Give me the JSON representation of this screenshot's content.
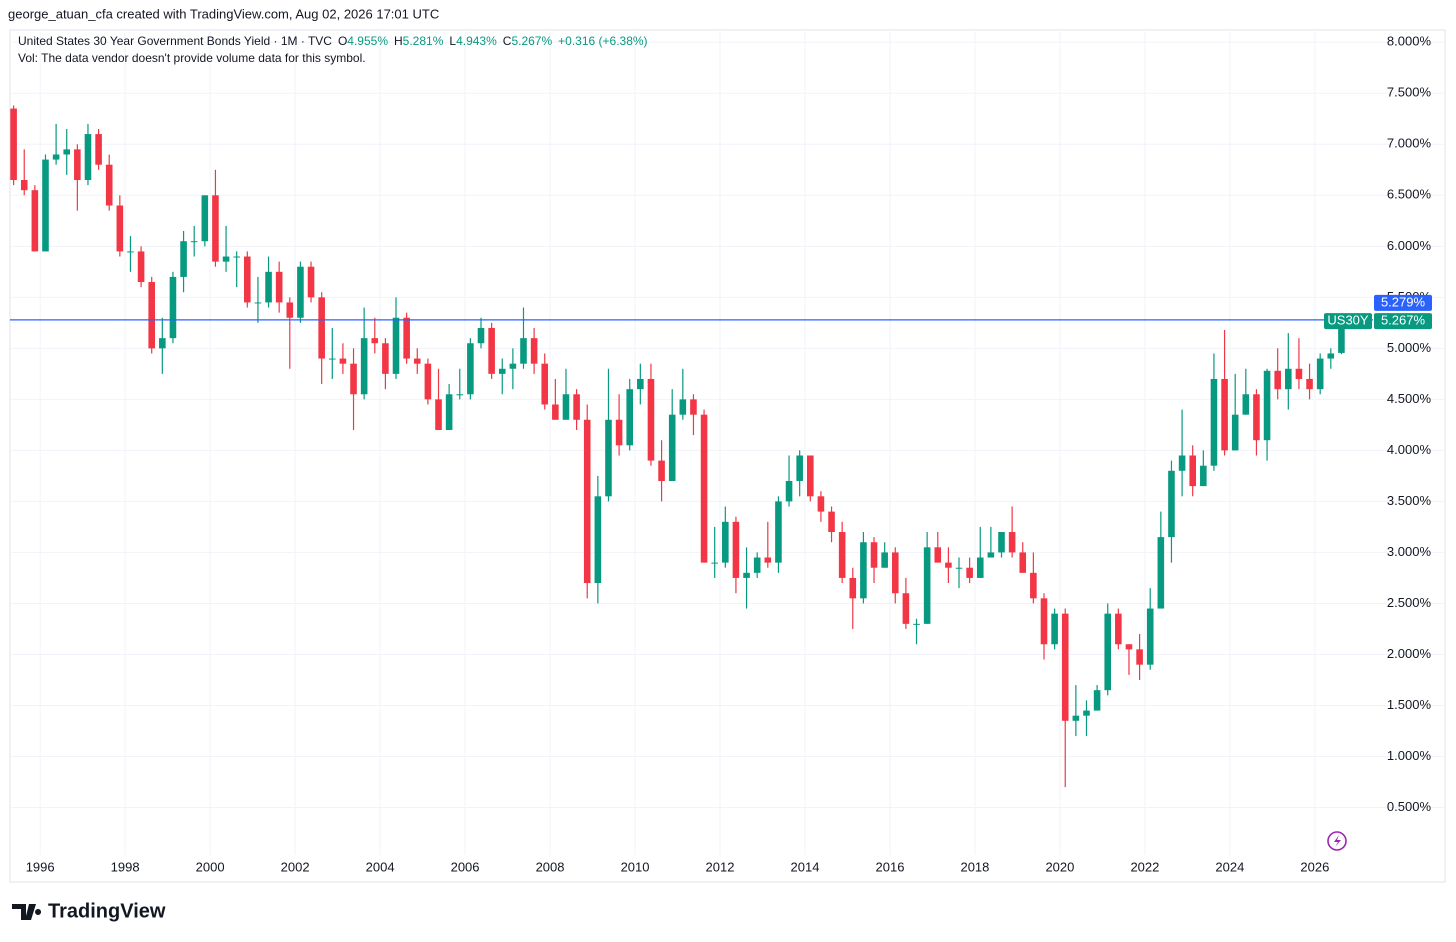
{
  "chart_data": {
    "type": "candlestick",
    "credit": "george_atuan_cfa created with TradingView.com, Aug 02, 2026 17:01 UTC",
    "title": "United States 30 Year Government Bonds Yield · 1M · TVC",
    "legend": [
      {
        "key": "O",
        "text": "4.955%"
      },
      {
        "key": "H",
        "text": "5.281%"
      },
      {
        "key": "L",
        "text": "4.943%"
      },
      {
        "key": "C",
        "text": "5.267%"
      }
    ],
    "change": "+0.316 (+6.38%)",
    "volume_note": "Vol: The data vendor doesn't provide volume data for this symbol.",
    "brand": "TradingView",
    "up_color": "#089981",
    "down_color": "#f23645",
    "grid": true,
    "xlim": [
      1995.29,
      2027.18
    ],
    "xticks": [
      1996,
      1998,
      2000,
      2002,
      2004,
      2006,
      2008,
      2010,
      2012,
      2014,
      2016,
      2018,
      2020,
      2022,
      2024,
      2026
    ],
    "ylim": [
      -0.23,
      8.12
    ],
    "yticks": [
      {
        "value": 0.5,
        "label": "0.500%"
      },
      {
        "value": 1,
        "label": "1.000%"
      },
      {
        "value": 1.5,
        "label": "1.500%"
      },
      {
        "value": 2,
        "label": "2.000%"
      },
      {
        "value": 2.5,
        "label": "2.500%"
      },
      {
        "value": 3,
        "label": "3.000%"
      },
      {
        "value": 3.5,
        "label": "3.500%"
      },
      {
        "value": 4,
        "label": "4.000%"
      },
      {
        "value": 4.5,
        "label": "4.500%"
      },
      {
        "value": 5,
        "label": "5.000%"
      },
      {
        "value": 5.5,
        "label": "5.500%"
      },
      {
        "value": 6,
        "label": "6.000%"
      },
      {
        "value": 6.5,
        "label": "6.500%"
      },
      {
        "value": 7,
        "label": "7.000%"
      },
      {
        "value": 7.5,
        "label": "7.500%"
      },
      {
        "value": 8,
        "label": "8.000%"
      }
    ],
    "price_line": {
      "value": 5.279,
      "label": "5.279%",
      "color": "#2962ff"
    },
    "last_close": {
      "name": "US30Y",
      "value": 5.267,
      "label": "5.267%",
      "color": "#089981"
    },
    "x": [
      1995.25,
      1995.5,
      1995.75,
      1996,
      1996.25,
      1996.5,
      1996.75,
      1997,
      1997.25,
      1997.5,
      1997.75,
      1998,
      1998.25,
      1998.5,
      1998.75,
      1999,
      1999.25,
      1999.5,
      1999.75,
      2000,
      2000.25,
      2000.5,
      2000.75,
      2001,
      2001.25,
      2001.5,
      2001.75,
      2002,
      2002.25,
      2002.5,
      2002.75,
      2003,
      2003.25,
      2003.5,
      2003.75,
      2004,
      2004.25,
      2004.5,
      2004.75,
      2005,
      2005.25,
      2005.5,
      2005.75,
      2006,
      2006.25,
      2006.5,
      2006.75,
      2007,
      2007.25,
      2007.5,
      2007.75,
      2008,
      2008.25,
      2008.5,
      2008.75,
      2009,
      2009.25,
      2009.5,
      2009.75,
      2010,
      2010.25,
      2010.5,
      2010.75,
      2011,
      2011.25,
      2011.5,
      2011.75,
      2012,
      2012.25,
      2012.5,
      2012.75,
      2013,
      2013.25,
      2013.5,
      2013.75,
      2014,
      2014.25,
      2014.5,
      2014.75,
      2015,
      2015.25,
      2015.5,
      2015.75,
      2016,
      2016.25,
      2016.5,
      2016.75,
      2017,
      2017.25,
      2017.5,
      2017.75,
      2018,
      2018.25,
      2018.5,
      2018.75,
      2019,
      2019.25,
      2019.5,
      2019.75,
      2020,
      2020.25,
      2020.5,
      2020.75,
      2021,
      2021.25,
      2021.5,
      2021.75,
      2022,
      2022.25,
      2022.5,
      2022.75,
      2023,
      2023.25,
      2023.5,
      2023.75,
      2024,
      2024.25,
      2024.5,
      2024.75,
      2025,
      2025.25,
      2025.5,
      2025.75,
      2026,
      2026.25,
      2026.5
    ],
    "open": [
      7.35,
      6.65,
      6.55,
      5.95,
      6.85,
      6.9,
      6.95,
      6.65,
      7.1,
      6.8,
      6.4,
      5.95,
      5.95,
      5.65,
      5.0,
      5.1,
      5.7,
      6.05,
      6.05,
      6.5,
      5.85,
      5.9,
      5.9,
      5.45,
      5.45,
      5.75,
      5.45,
      5.3,
      5.8,
      5.5,
      4.9,
      4.9,
      4.85,
      4.55,
      5.1,
      5.05,
      4.75,
      5.3,
      4.9,
      4.85,
      4.5,
      4.2,
      4.55,
      4.55,
      5.05,
      5.2,
      4.75,
      4.8,
      4.85,
      5.1,
      4.85,
      4.45,
      4.3,
      4.55,
      4.3,
      2.7,
      3.55,
      4.3,
      4.05,
      4.6,
      4.7,
      3.9,
      3.7,
      4.35,
      4.5,
      4.35,
      2.9,
      2.9,
      3.3,
      2.75,
      2.8,
      2.95,
      2.9,
      3.5,
      3.7,
      3.95,
      3.55,
      3.4,
      3.2,
      2.75,
      2.55,
      3.1,
      2.85,
      3.0,
      2.6,
      2.3,
      2.3,
      3.05,
      2.9,
      2.85,
      2.85,
      2.75,
      2.95,
      3.0,
      3.2,
      3.0,
      2.8,
      2.55,
      2.1,
      2.4,
      1.35,
      1.4,
      1.45,
      1.65,
      2.4,
      2.1,
      2.05,
      1.9,
      2.45,
      3.15,
      3.8,
      3.95,
      3.65,
      3.85,
      4.7,
      4.0,
      4.35,
      4.55,
      4.1,
      4.78,
      4.6,
      4.8,
      4.7,
      4.6,
      4.9,
      4.955
    ],
    "high": [
      7.38,
      6.95,
      6.6,
      6.9,
      7.2,
      7.15,
      7.0,
      7.2,
      7.15,
      6.9,
      6.5,
      6.1,
      6.0,
      5.7,
      5.3,
      5.75,
      6.15,
      6.2,
      6.5,
      6.75,
      6.2,
      5.95,
      5.95,
      5.7,
      5.9,
      5.85,
      5.5,
      5.85,
      5.85,
      5.55,
      5.2,
      5.05,
      5.0,
      5.4,
      5.3,
      5.1,
      5.5,
      5.35,
      5.0,
      4.9,
      4.8,
      4.65,
      4.8,
      5.1,
      5.3,
      5.25,
      4.9,
      5.0,
      5.4,
      5.2,
      4.95,
      4.7,
      4.8,
      4.6,
      4.45,
      3.75,
      4.8,
      4.55,
      4.7,
      4.85,
      4.85,
      4.1,
      4.6,
      4.8,
      4.55,
      4.4,
      3.25,
      3.45,
      3.35,
      3.05,
      3.0,
      3.3,
      3.55,
      3.95,
      4.0,
      3.95,
      3.6,
      3.45,
      3.3,
      2.85,
      3.2,
      3.15,
      3.1,
      3.05,
      2.75,
      2.35,
      3.2,
      3.2,
      3.05,
      2.95,
      2.95,
      3.25,
      3.25,
      3.2,
      3.45,
      3.1,
      3.0,
      2.6,
      2.45,
      2.45,
      1.7,
      1.55,
      1.7,
      2.5,
      2.45,
      2.1,
      2.2,
      2.65,
      3.4,
      3.9,
      4.4,
      4.05,
      4.0,
      4.95,
      5.18,
      4.75,
      4.8,
      4.6,
      4.8,
      5.0,
      5.15,
      5.1,
      4.85,
      4.95,
      5.0,
      5.281
    ],
    "low": [
      6.6,
      6.5,
      5.95,
      5.95,
      6.8,
      6.7,
      6.35,
      6.6,
      6.75,
      6.35,
      5.9,
      5.75,
      5.6,
      4.95,
      4.75,
      5.05,
      5.55,
      5.9,
      6.0,
      5.8,
      5.75,
      5.6,
      5.4,
      5.25,
      5.4,
      5.35,
      4.8,
      5.25,
      5.45,
      4.65,
      4.7,
      4.75,
      4.2,
      4.5,
      4.95,
      4.6,
      4.7,
      4.85,
      4.75,
      4.45,
      4.2,
      4.2,
      4.5,
      4.5,
      5.0,
      4.7,
      4.55,
      4.6,
      4.8,
      4.75,
      4.4,
      4.3,
      4.3,
      4.2,
      2.55,
      2.5,
      3.5,
      3.95,
      4.0,
      4.45,
      3.85,
      3.5,
      3.7,
      4.3,
      4.15,
      2.9,
      2.75,
      2.85,
      2.6,
      2.45,
      2.75,
      2.85,
      2.8,
      3.45,
      3.55,
      3.5,
      3.3,
      3.1,
      2.7,
      2.25,
      2.5,
      2.7,
      2.85,
      2.5,
      2.25,
      2.1,
      2.3,
      2.9,
      2.7,
      2.65,
      2.7,
      2.75,
      2.95,
      2.95,
      2.95,
      2.8,
      2.5,
      1.95,
      2.05,
      0.7,
      1.2,
      1.2,
      1.45,
      1.6,
      2.05,
      1.8,
      1.75,
      1.85,
      2.45,
      2.9,
      3.55,
      3.55,
      3.65,
      3.8,
      3.95,
      4.0,
      4.35,
      3.95,
      3.9,
      4.5,
      4.4,
      4.6,
      4.5,
      4.55,
      4.8,
      4.943
    ],
    "close": [
      6.65,
      6.55,
      5.95,
      6.85,
      6.9,
      6.95,
      6.65,
      7.1,
      6.8,
      6.4,
      5.95,
      5.95,
      5.65,
      5.0,
      5.1,
      5.7,
      6.05,
      6.05,
      6.5,
      5.85,
      5.9,
      5.9,
      5.45,
      5.45,
      5.75,
      5.45,
      5.3,
      5.8,
      5.5,
      4.9,
      4.9,
      4.85,
      4.55,
      5.1,
      5.05,
      4.75,
      5.3,
      4.9,
      4.85,
      4.5,
      4.2,
      4.55,
      4.55,
      5.05,
      5.2,
      4.75,
      4.8,
      4.85,
      5.1,
      4.85,
      4.45,
      4.3,
      4.55,
      4.3,
      2.7,
      3.55,
      4.3,
      4.05,
      4.6,
      4.7,
      3.9,
      3.7,
      4.35,
      4.5,
      4.35,
      2.9,
      2.9,
      3.3,
      2.75,
      2.8,
      2.95,
      2.9,
      3.5,
      3.7,
      3.95,
      3.55,
      3.4,
      3.2,
      2.75,
      2.55,
      3.1,
      2.85,
      3.0,
      2.6,
      2.3,
      2.3,
      3.05,
      2.9,
      2.85,
      2.85,
      2.75,
      2.95,
      3.0,
      3.2,
      3.0,
      2.8,
      2.55,
      2.1,
      2.4,
      1.35,
      1.4,
      1.45,
      1.65,
      2.4,
      2.1,
      2.05,
      1.9,
      2.45,
      3.15,
      3.8,
      3.95,
      3.65,
      3.85,
      4.7,
      4.0,
      4.35,
      4.55,
      4.1,
      4.78,
      4.6,
      4.8,
      4.7,
      4.6,
      4.9,
      4.95,
      5.267
    ]
  }
}
